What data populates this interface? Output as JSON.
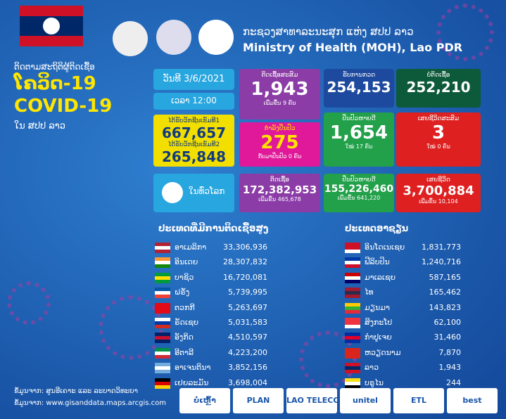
{
  "header": {
    "ministry_lo": "ກະຊວງສາທາລະນະສຸກ ແຫ່ງ ສປປ ລາວ",
    "ministry_en": "Ministry of Health (MOH), Lao PDR"
  },
  "title": {
    "line1": "ຕິດຕາມສະຖິຕິຜູ້ຕິດເຊື້ອ",
    "lao": "ໂຄວິດ-19",
    "en": "COVID-19",
    "line3": "ໃນ ສປປ ລາວ"
  },
  "date": "ວັນທີ 3/6/2021",
  "time": "ເວລາ 12:00",
  "vaccine": {
    "dose1_label": "ໄດ້ຮັບວັກຊີນເຂັມທີ1",
    "dose1": "667,657",
    "dose2_label": "ໄດ້ຮັບວັກຊີນເຂັມທີ2",
    "dose2": "265,848"
  },
  "stats": {
    "cumulative": {
      "label": "ຕິດເຊື້ອສະສົມ",
      "value": "1,943",
      "note": "ເພີ່ມຂຶ້ນ 9 ຄົນ"
    },
    "treating": {
      "label": "ກຳລັງປິ່ນປົວ",
      "value": "275",
      "note": "ກັບມາປິ່ນປົວ 0 ຄົນ"
    },
    "tested": {
      "label": "ຮັບການກວດ",
      "value": "254,153"
    },
    "negative": {
      "label": "ບໍ່ຕິດເຊື້ອ",
      "value": "252,210"
    },
    "recovered": {
      "label": "ປິ່ນປົວຫາຍດີ",
      "value": "1,654",
      "note": "ໃໝ່ 17 ຄົນ"
    },
    "deaths": {
      "label": "ເສຍຊີວິດສະສົມ",
      "value": "3",
      "note": "ໃໝ່ 0 ຄົນ"
    }
  },
  "world": {
    "label": "ໃນທົ່ວໂລກ",
    "cases": {
      "label": "ຕິດເຊື້ອ",
      "value": "172,382,953",
      "note": "ເພີ່ມຂຶ້ນ 465,678"
    },
    "recovered": {
      "label": "ປິ່ນປົວຫາຍດີ",
      "value": "155,226,460",
      "note": "ເພີ່ມຂຶ້ນ 641,220"
    },
    "deaths": {
      "label": "ເສຍຊີວິດ",
      "value": "3,700,884",
      "note": "ເພີ່ມຂຶ້ນ 10,104"
    }
  },
  "top_countries": {
    "title": "ປະເທດທີ່ມີການຕິດເຊື້ອສູງ",
    "rows": [
      [
        "ອາເມລິກາ",
        "33,306,936"
      ],
      [
        "ອິນເດຍ",
        "28,307,832"
      ],
      [
        "ບາຊິວ",
        "16,720,081"
      ],
      [
        "ຝຣັ່ງ",
        "5,739,995"
      ],
      [
        "ຕວກກີ",
        "5,263,697"
      ],
      [
        "ຣັດເຊຍ",
        "5,031,583"
      ],
      [
        "ອັງກິດ",
        "4,510,597"
      ],
      [
        "ອີຕາລີ",
        "4,223,200"
      ],
      [
        "ອາເຈນຕິນາ",
        "3,852,156"
      ],
      [
        "ເຢຍລະມັນ",
        "3,698,004"
      ]
    ]
  },
  "asean": {
    "title": "ປະເທດອາຊຽນ",
    "rows": [
      [
        "ອິນໂດເນເຊຍ",
        "1,831,773"
      ],
      [
        "ຟີລິບປິນ",
        "1,240,716"
      ],
      [
        "ມາເລເຊຍ",
        "587,165"
      ],
      [
        "ໄທ",
        "165,462"
      ],
      [
        "ມຽນມາ",
        "143,823"
      ],
      [
        "ສິງກະໂປ",
        "62,100"
      ],
      [
        "ກຳປູເຈຍ",
        "31,460"
      ],
      [
        "ຫວຽດນາມ",
        "7,870"
      ],
      [
        "ລາວ",
        "1,943"
      ],
      [
        "ບຣູໄນ",
        "244"
      ]
    ]
  },
  "sources": [
    "ຂໍ້ມູນຈາກ: ສູນອີເຄາະ ແລະ ລະບາດວິທະຍາ",
    "ຂໍ້ມູນຈາກ: www.gisanddata.maps.arcgis.com"
  ],
  "sponsors": [
    "ບໍ່ເຫຼົ້າ",
    "PLAN",
    "LAO TELECOM",
    "unitel",
    "ETL",
    "best"
  ]
}
